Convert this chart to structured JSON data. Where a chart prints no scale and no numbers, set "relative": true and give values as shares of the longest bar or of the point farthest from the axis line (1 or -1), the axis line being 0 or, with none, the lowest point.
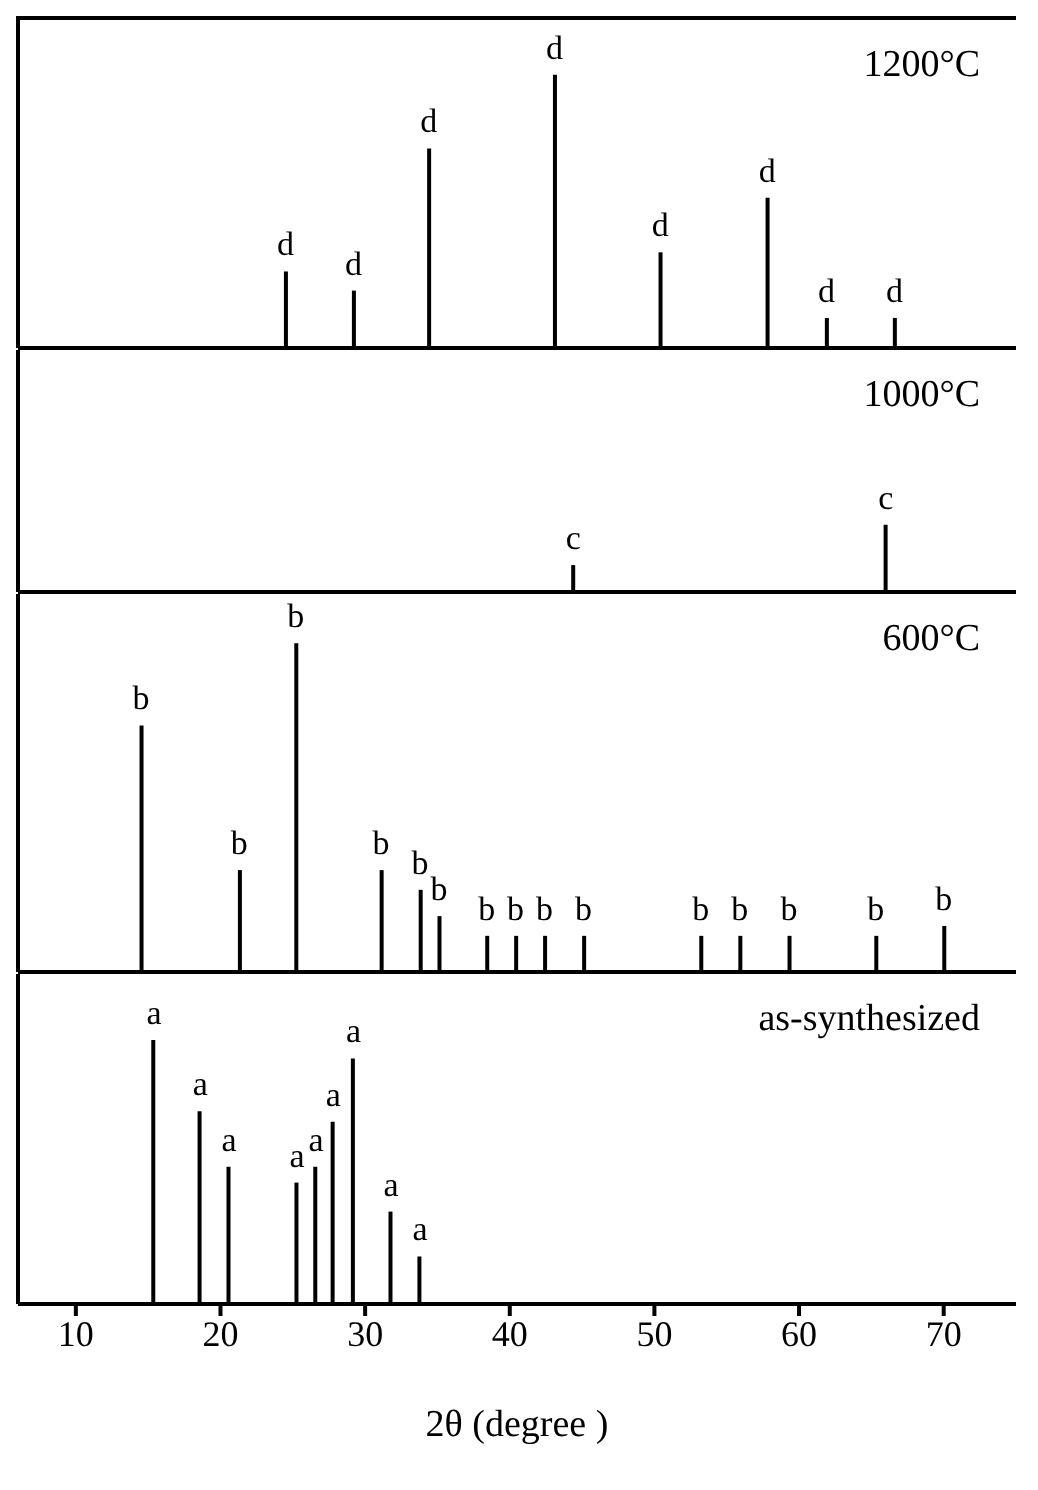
{
  "chart_data": [
    {
      "type": "bar",
      "title": "1200°C",
      "relative": true,
      "color": "#000000",
      "xlim": [
        6,
        75
      ],
      "tick_labels": false,
      "x": [
        24.5,
        29.2,
        34.4,
        43.1,
        50.4,
        57.8,
        61.9,
        66.6
      ],
      "values": [
        0.28,
        0.21,
        0.73,
        1,
        0.35,
        0.55,
        0.11,
        0.11
      ],
      "annotations": [
        {
          "text": "d",
          "x": 24.5,
          "y": 0.28
        },
        {
          "text": "d",
          "x": 29.2,
          "y": 0.21
        },
        {
          "text": "d",
          "x": 34.4,
          "y": 0.73
        },
        {
          "text": "d",
          "x": 43.1,
          "y": 1
        },
        {
          "text": "d",
          "x": 50.4,
          "y": 0.35
        },
        {
          "text": "d",
          "x": 57.8,
          "y": 0.55
        },
        {
          "text": "d",
          "x": 61.9,
          "y": 0.11
        },
        {
          "text": "d",
          "x": 66.6,
          "y": 0.11
        }
      ]
    },
    {
      "type": "bar",
      "title": "1000°C",
      "relative": true,
      "color": "#000000",
      "xlim": [
        6,
        75
      ],
      "tick_labels": false,
      "x": [
        44.4,
        66.0
      ],
      "values": [
        0.4,
        1
      ],
      "annotations": [
        {
          "text": "c",
          "x": 44.4,
          "y": 0.4
        },
        {
          "text": "c",
          "x": 66.0,
          "y": 1
        }
      ]
    },
    {
      "type": "bar",
      "title": "600°C",
      "relative": true,
      "color": "#000000",
      "xlim": [
        6,
        75
      ],
      "tick_labels": false,
      "x": [
        14.5,
        21.3,
        25.2,
        31.1,
        33.8,
        35.1,
        38.4,
        40.4,
        42.4,
        45.1,
        53.2,
        55.9,
        59.3,
        65.3,
        70.0
      ],
      "values": [
        0.75,
        0.31,
        1,
        0.31,
        0.25,
        0.17,
        0.11,
        0.11,
        0.11,
        0.11,
        0.11,
        0.11,
        0.11,
        0.11,
        0.14
      ],
      "annotations": [
        {
          "text": "b",
          "x": 14.5,
          "y": 0.75
        },
        {
          "text": "b",
          "x": 21.3,
          "y": 0.31
        },
        {
          "text": "b",
          "x": 25.2,
          "y": 1
        },
        {
          "text": "b",
          "x": 31.1,
          "y": 0.31
        },
        {
          "text": "b",
          "x": 33.8,
          "y": 0.25
        },
        {
          "text": "b",
          "x": 35.1,
          "y": 0.17
        },
        {
          "text": "b",
          "x": 38.4,
          "y": 0.11
        },
        {
          "text": "b",
          "x": 40.4,
          "y": 0.11
        },
        {
          "text": "b",
          "x": 42.4,
          "y": 0.11
        },
        {
          "text": "b",
          "x": 45.1,
          "y": 0.11
        },
        {
          "text": "b",
          "x": 53.2,
          "y": 0.11
        },
        {
          "text": "b",
          "x": 55.9,
          "y": 0.11
        },
        {
          "text": "b",
          "x": 59.3,
          "y": 0.11
        },
        {
          "text": "b",
          "x": 65.3,
          "y": 0.11
        },
        {
          "text": "b",
          "x": 70.0,
          "y": 0.14
        }
      ]
    },
    {
      "type": "bar",
      "title": "as-synthesized",
      "relative": true,
      "color": "#000000",
      "xlim": [
        6,
        75
      ],
      "xticks": [
        10,
        20,
        30,
        40,
        50,
        60,
        70
      ],
      "xlabel": "2θ (degree )",
      "tick_labels": "x",
      "x": [
        15.4,
        18.6,
        20.6,
        25.3,
        26.6,
        27.8,
        29.2,
        31.8,
        33.8
      ],
      "values": [
        1,
        0.73,
        0.52,
        0.46,
        0.52,
        0.69,
        0.93,
        0.35,
        0.18
      ],
      "annotations": [
        {
          "text": "a",
          "x": 15.4,
          "y": 1
        },
        {
          "text": "a",
          "x": 18.6,
          "y": 0.73
        },
        {
          "text": "a",
          "x": 20.6,
          "y": 0.52
        },
        {
          "text": "a",
          "x": 25.3,
          "y": 0.46
        },
        {
          "text": "a",
          "x": 26.6,
          "y": 0.52
        },
        {
          "text": "a",
          "x": 27.8,
          "y": 0.69
        },
        {
          "text": "a",
          "x": 29.2,
          "y": 0.93
        },
        {
          "text": "a",
          "x": 31.8,
          "y": 0.35
        },
        {
          "text": "a",
          "x": 33.8,
          "y": 0.18
        }
      ]
    }
  ]
}
